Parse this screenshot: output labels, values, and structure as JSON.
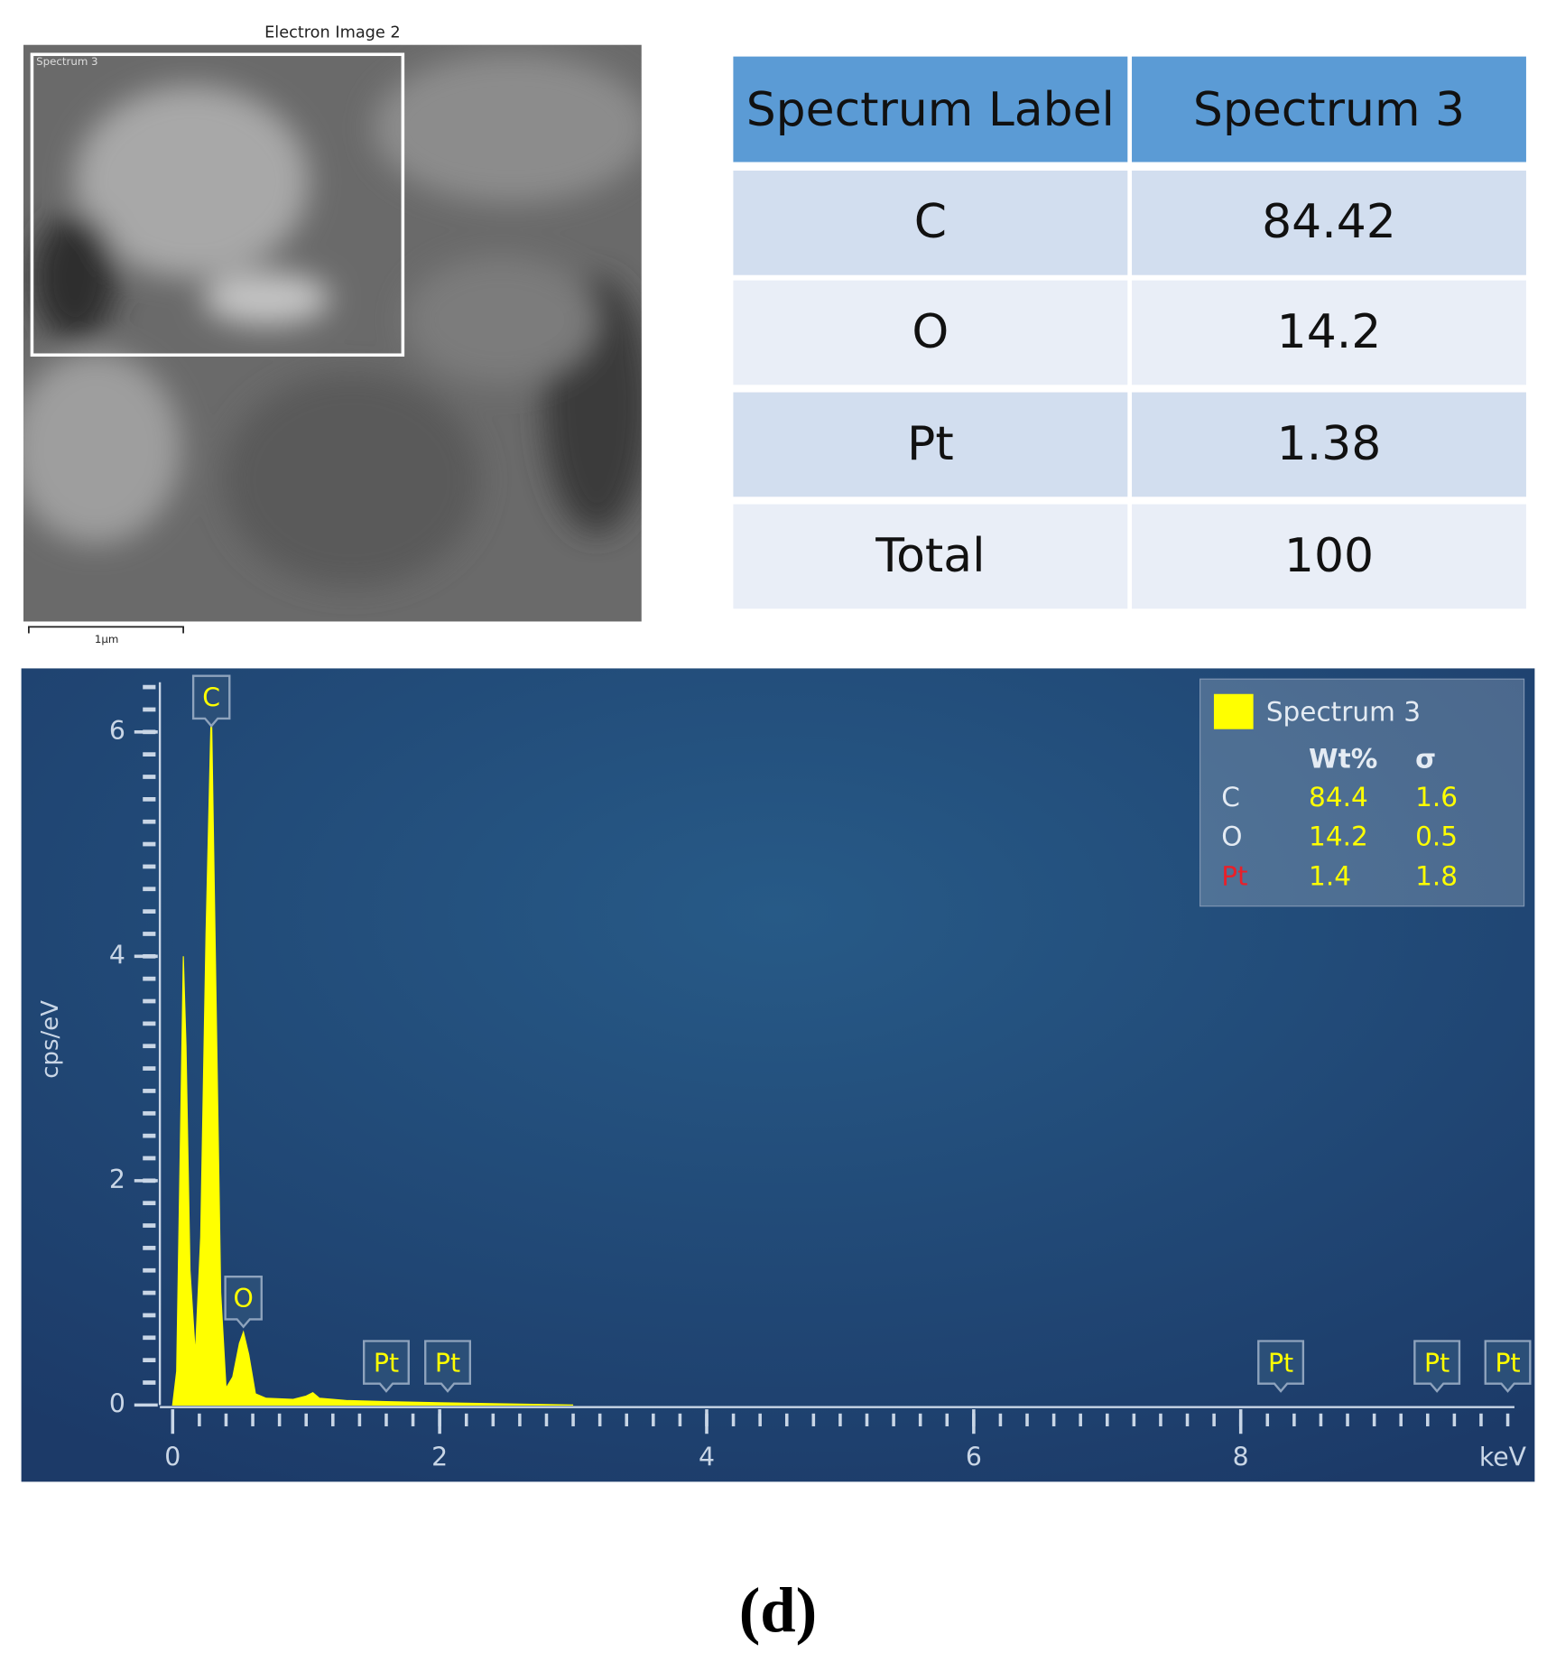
{
  "image": {
    "title": "Electron Image 2",
    "region_label": "Spectrum 3",
    "scale_bar": "1µm"
  },
  "table": {
    "header": [
      "Spectrum Label",
      "Spectrum 3"
    ],
    "rows": [
      [
        "C",
        "84.42"
      ],
      [
        "O",
        "14.2"
      ],
      [
        "Pt",
        "1.38"
      ],
      [
        "Total",
        "100"
      ]
    ]
  },
  "chart_data": {
    "type": "area",
    "xlabel": "keV",
    "ylabel": "cps/eV",
    "xlim": [
      0,
      10.05
    ],
    "ylim": [
      0,
      6.5
    ],
    "xticks": [
      0,
      2,
      4,
      6,
      8
    ],
    "yticks": [
      0,
      2,
      4,
      6
    ],
    "series": [
      {
        "name": "Spectrum 3",
        "color": "#ffff00",
        "x": [
          0,
          0.03,
          0.06,
          0.08,
          0.1,
          0.13,
          0.17,
          0.21,
          0.25,
          0.29,
          0.32,
          0.36,
          0.4,
          0.45,
          0.5,
          0.53,
          0.57,
          0.62,
          0.7,
          0.9,
          1.0,
          1.05,
          1.1,
          1.3,
          1.6,
          2.0,
          2.5,
          3.0
        ],
        "values": [
          0,
          0.3,
          2.5,
          4.0,
          3.2,
          1.2,
          0.45,
          1.5,
          4.2,
          6.25,
          4.0,
          1.0,
          0.15,
          0.25,
          0.55,
          0.65,
          0.45,
          0.1,
          0.06,
          0.05,
          0.08,
          0.11,
          0.06,
          0.04,
          0.03,
          0.02,
          0.01,
          0
        ]
      }
    ],
    "annotations": [
      {
        "label": "C",
        "x": 0.29
      },
      {
        "label": "O",
        "x": 0.53
      },
      {
        "label": "Pt",
        "x": 1.6
      },
      {
        "label": "Pt",
        "x": 2.06
      },
      {
        "label": "Pt",
        "x": 8.3
      },
      {
        "label": "Pt",
        "x": 9.47
      },
      {
        "label": "Pt",
        "x": 10.0
      }
    ],
    "legend_table": {
      "columns": [
        "Wt%",
        "σ"
      ],
      "rows": [
        {
          "element": "C",
          "wt": "84.4",
          "sigma": "1.6"
        },
        {
          "element": "O",
          "wt": "14.2",
          "sigma": "0.5"
        },
        {
          "element": "Pt",
          "wt": "1.4",
          "sigma": "1.8"
        }
      ]
    }
  },
  "caption": "(d)"
}
